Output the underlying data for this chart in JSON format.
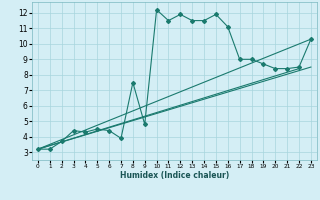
{
  "xlabel": "Humidex (Indice chaleur)",
  "bg_color": "#d4eef5",
  "grid_color": "#a8d5de",
  "line_color": "#1a7a6e",
  "xlim": [
    -0.5,
    23.5
  ],
  "ylim": [
    2.5,
    12.7
  ],
  "xticks": [
    0,
    1,
    2,
    3,
    4,
    5,
    6,
    7,
    8,
    9,
    10,
    11,
    12,
    13,
    14,
    15,
    16,
    17,
    18,
    19,
    20,
    21,
    22,
    23
  ],
  "yticks": [
    3,
    4,
    5,
    6,
    7,
    8,
    9,
    10,
    11,
    12
  ],
  "series": [
    [
      0,
      3.2
    ],
    [
      1,
      3.2
    ],
    [
      2,
      3.7
    ],
    [
      3,
      4.4
    ],
    [
      4,
      4.3
    ],
    [
      5,
      4.5
    ],
    [
      6,
      4.4
    ],
    [
      7,
      3.9
    ],
    [
      8,
      7.5
    ],
    [
      9,
      4.8
    ],
    [
      10,
      12.2
    ],
    [
      11,
      11.5
    ],
    [
      12,
      11.9
    ],
    [
      13,
      11.5
    ],
    [
      14,
      11.5
    ],
    [
      15,
      11.9
    ],
    [
      16,
      11.1
    ],
    [
      17,
      9.0
    ],
    [
      18,
      9.0
    ],
    [
      19,
      8.7
    ],
    [
      20,
      8.4
    ],
    [
      21,
      8.4
    ],
    [
      22,
      8.5
    ],
    [
      23,
      10.3
    ]
  ],
  "trend_lines": [
    [
      [
        0,
        3.2
      ],
      [
        23,
        10.3
      ]
    ],
    [
      [
        0,
        3.2
      ],
      [
        23,
        8.5
      ]
    ],
    [
      [
        0,
        3.2
      ],
      [
        22,
        8.4
      ]
    ]
  ]
}
